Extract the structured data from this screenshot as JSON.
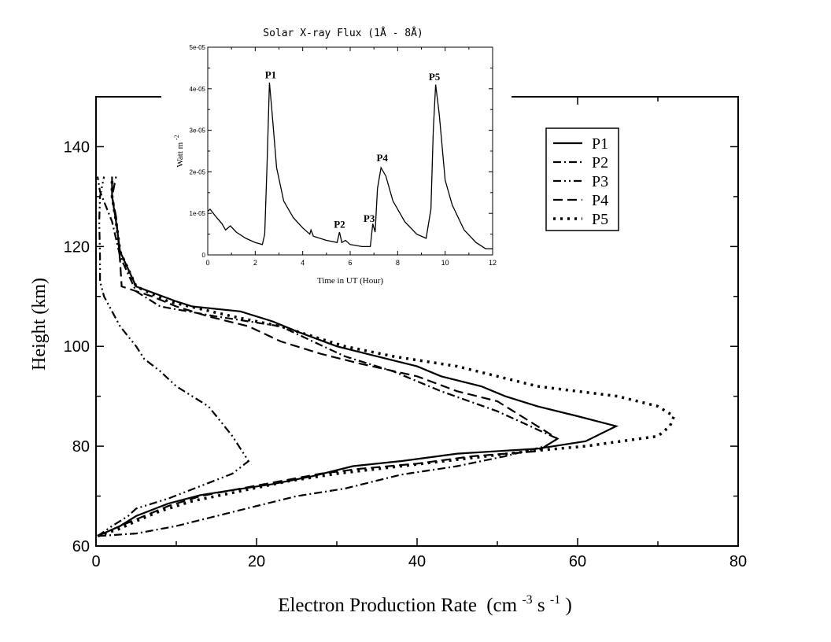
{
  "chart_data": [
    {
      "type": "line",
      "title": "",
      "xlabel": "Electron Production Rate",
      "xlabel_unit_prefix": "(cm",
      "xlabel_unit_exp1": "-3",
      "xlabel_unit_mid": " s",
      "xlabel_unit_exp2": "-1",
      "xlabel_unit_suffix": ")",
      "ylabel": "Height (km)",
      "xlim": [
        0,
        80
      ],
      "ylim": [
        60,
        150
      ],
      "xticks": [
        0,
        20,
        40,
        60,
        80
      ],
      "xtick_labels": [
        "0",
        "20",
        "40",
        "60",
        "80"
      ],
      "yticks": [
        60,
        80,
        100,
        120,
        140
      ],
      "ytick_labels": [
        "60",
        "80",
        "100",
        "120",
        "140"
      ],
      "legend_position": "top-right",
      "series": [
        {
          "name": "P1",
          "style": "solid",
          "points": [
            [
              0.2,
              62
            ],
            [
              3,
              64
            ],
            [
              5,
              66
            ],
            [
              9,
              68.5
            ],
            [
              13,
              70.2
            ],
            [
              17,
              71.2
            ],
            [
              22,
              72.4
            ],
            [
              27,
              74
            ],
            [
              32,
              76
            ],
            [
              38,
              77
            ],
            [
              45,
              78.5
            ],
            [
              55,
              79.5
            ],
            [
              61,
              81
            ],
            [
              64.8,
              84
            ],
            [
              60,
              86
            ],
            [
              55,
              88
            ],
            [
              51,
              90
            ],
            [
              48,
              92
            ],
            [
              43,
              94
            ],
            [
              40,
              96
            ],
            [
              35,
              98
            ],
            [
              30,
              100
            ],
            [
              25,
              103
            ],
            [
              22,
              105
            ],
            [
              18,
              107
            ],
            [
              12,
              108
            ],
            [
              10,
              109
            ],
            [
              5,
              112
            ],
            [
              3,
              119
            ],
            [
              2.5,
              125
            ],
            [
              2,
              130
            ],
            [
              2,
              134
            ]
          ]
        },
        {
          "name": "P2",
          "style": "dash-dot",
          "points": [
            [
              0.3,
              62
            ],
            [
              5,
              62.5
            ],
            [
              10,
              64
            ],
            [
              15,
              66
            ],
            [
              20,
              68
            ],
            [
              25,
              70
            ],
            [
              31,
              71.5
            ],
            [
              38,
              74.3
            ],
            [
              45,
              76
            ],
            [
              51,
              78
            ],
            [
              56,
              80
            ],
            [
              57.5,
              81.5
            ],
            [
              50,
              87
            ],
            [
              43,
              91
            ],
            [
              37,
              95
            ],
            [
              31,
              98
            ],
            [
              27,
              101
            ],
            [
              23,
              104
            ],
            [
              15,
              106
            ],
            [
              8,
              108
            ],
            [
              5,
              111
            ],
            [
              3,
              118
            ],
            [
              2,
              125
            ],
            [
              1,
              129
            ],
            [
              0.5,
              131
            ],
            [
              0.2,
              134
            ]
          ]
        },
        {
          "name": "P3",
          "style": "dash-dot-dot",
          "points": [
            [
              0.2,
              62
            ],
            [
              2,
              64
            ],
            [
              4,
              66
            ],
            [
              5,
              67.5
            ],
            [
              9,
              69.5
            ],
            [
              13,
              72
            ],
            [
              17,
              74.5
            ],
            [
              19,
              77
            ],
            [
              18,
              79.5
            ],
            [
              17,
              82
            ],
            [
              16,
              84
            ],
            [
              15,
              86
            ],
            [
              14,
              88
            ],
            [
              10,
              92
            ],
            [
              8,
              95
            ],
            [
              6,
              97.5
            ],
            [
              5,
              100
            ],
            [
              3,
              104
            ],
            [
              2,
              107
            ],
            [
              1,
              110
            ],
            [
              0.5,
              113
            ],
            [
              0.5,
              118
            ],
            [
              0.4,
              125
            ],
            [
              0.5,
              130
            ],
            [
              1,
              134
            ]
          ]
        },
        {
          "name": "P4",
          "style": "dashed",
          "points": [
            [
              0.2,
              62
            ],
            [
              3,
              64
            ],
            [
              6,
              66
            ],
            [
              9,
              68
            ],
            [
              13,
              70
            ],
            [
              18,
              71.5
            ],
            [
              23,
              73
            ],
            [
              28,
              74.5
            ],
            [
              33,
              75.5
            ],
            [
              40,
              76.5
            ],
            [
              47,
              78
            ],
            [
              55,
              79
            ],
            [
              57.5,
              81.5
            ],
            [
              53,
              86
            ],
            [
              50,
              89
            ],
            [
              45,
              91
            ],
            [
              40,
              94
            ],
            [
              33,
              96.5
            ],
            [
              28,
              98.5
            ],
            [
              23,
              101
            ],
            [
              19,
              104
            ],
            [
              14,
              106
            ],
            [
              10,
              108
            ],
            [
              7,
              110
            ],
            [
              3.2,
              112
            ],
            [
              3,
              117
            ],
            [
              2.8,
              121
            ],
            [
              2.5,
              126
            ],
            [
              2,
              130
            ],
            [
              2.5,
              134
            ]
          ]
        },
        {
          "name": "P5",
          "style": "dotted",
          "points": [
            [
              0.2,
              62
            ],
            [
              3,
              63.5
            ],
            [
              5,
              65
            ],
            [
              8,
              67
            ],
            [
              12,
              69
            ],
            [
              18,
              71
            ],
            [
              24,
              73
            ],
            [
              30,
              74.5
            ],
            [
              38,
              76
            ],
            [
              46,
              77.5
            ],
            [
              54,
              79
            ],
            [
              61,
              80
            ],
            [
              70,
              82
            ],
            [
              71.5,
              84
            ],
            [
              72,
              86
            ],
            [
              70,
              88
            ],
            [
              65,
              90
            ],
            [
              55,
              92
            ],
            [
              50,
              94
            ],
            [
              45,
              96
            ],
            [
              37,
              98
            ],
            [
              31,
              100
            ],
            [
              27,
              102
            ],
            [
              23,
              104
            ],
            [
              17,
              106
            ],
            [
              9,
              109
            ],
            [
              5,
              112
            ],
            [
              3,
              119
            ],
            [
              2.5,
              125
            ],
            [
              2,
              130
            ],
            [
              2,
              134
            ]
          ]
        }
      ]
    },
    {
      "type": "line",
      "title": "Solar X-ray Flux (1Å - 8Å)",
      "xlabel": "Time in UT (Hour)",
      "ylabel_base": "Watt  m",
      "ylabel_exp": "-2",
      "xlim": [
        0,
        12
      ],
      "ylim": [
        0,
        5e-05
      ],
      "xticks": [
        0,
        2,
        4,
        6,
        8,
        10,
        12
      ],
      "xtick_labels": [
        "0",
        "2",
        "4",
        "6",
        "8",
        "10",
        "12"
      ],
      "yticks": [
        0,
        1e-05,
        2e-05,
        3e-05,
        4e-05,
        5e-05
      ],
      "ytick_labels": [
        "0",
        "1e-05",
        "2e-05",
        "3e-05",
        "4e-05",
        "5e-05"
      ],
      "series": [
        {
          "name": "X-ray flux",
          "points": [
            [
              0,
              1.05e-05
            ],
            [
              0.1,
              1.1e-05
            ],
            [
              0.3,
              9.5e-06
            ],
            [
              0.6,
              7.5e-06
            ],
            [
              0.75,
              6e-06
            ],
            [
              0.85,
              6.5e-06
            ],
            [
              0.95,
              7e-06
            ],
            [
              1.2,
              5.5e-06
            ],
            [
              1.6,
              4e-06
            ],
            [
              2.0,
              3e-06
            ],
            [
              2.3,
              2.5e-06
            ],
            [
              2.4,
              5e-06
            ],
            [
              2.5,
              2.2e-05
            ],
            [
              2.6,
              4.15e-05
            ],
            [
              2.7,
              3.5e-05
            ],
            [
              2.9,
              2.1e-05
            ],
            [
              3.2,
              1.3e-05
            ],
            [
              3.6,
              9e-06
            ],
            [
              4.0,
              6.5e-06
            ],
            [
              4.3,
              5e-06
            ],
            [
              4.35,
              6e-06
            ],
            [
              4.45,
              4.5e-06
            ],
            [
              5.0,
              3.5e-06
            ],
            [
              5.45,
              3e-06
            ],
            [
              5.55,
              5.5e-06
            ],
            [
              5.65,
              3e-06
            ],
            [
              5.8,
              3.5e-06
            ],
            [
              6.0,
              2.5e-06
            ],
            [
              6.5,
              2e-06
            ],
            [
              6.85,
              2e-06
            ],
            [
              6.95,
              7.5e-06
            ],
            [
              7.05,
              5.5e-06
            ],
            [
              7.15,
              1.6e-05
            ],
            [
              7.3,
              2.1e-05
            ],
            [
              7.5,
              1.9e-05
            ],
            [
              7.8,
              1.3e-05
            ],
            [
              8.3,
              8e-06
            ],
            [
              8.8,
              5e-06
            ],
            [
              9.2,
              4e-06
            ],
            [
              9.4,
              1.1e-05
            ],
            [
              9.5,
              3e-05
            ],
            [
              9.6,
              4.1e-05
            ],
            [
              9.75,
              3.4e-05
            ],
            [
              10.0,
              1.8e-05
            ],
            [
              10.3,
              1.2e-05
            ],
            [
              10.8,
              6e-06
            ],
            [
              11.3,
              3e-06
            ],
            [
              11.7,
              1.5e-06
            ],
            [
              12,
              1.5e-06
            ]
          ]
        }
      ],
      "annotations": [
        {
          "text": "P1",
          "x": 2.65,
          "y": 4.25e-05
        },
        {
          "text": "P2",
          "x": 5.55,
          "y": 6.5e-06
        },
        {
          "text": "P3",
          "x": 6.8,
          "y": 8e-06
        },
        {
          "text": "P4",
          "x": 7.35,
          "y": 2.25e-05
        },
        {
          "text": "P5",
          "x": 9.55,
          "y": 4.2e-05
        }
      ]
    }
  ]
}
